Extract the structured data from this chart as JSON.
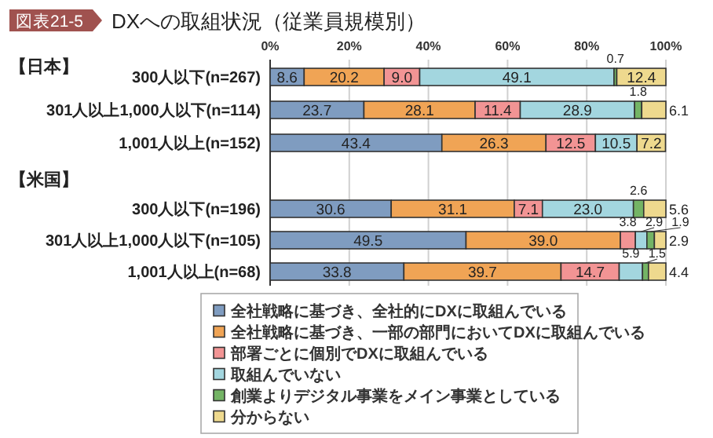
{
  "chart_data": [
    {
      "type": "bar",
      "orientation": "horizontal",
      "stacked": true,
      "title": "DXへの取組状況（従業員規模別）",
      "annotations": [
        "図表21-5"
      ],
      "ylabel": "【日本】",
      "categories": [
        "300人以下(n=267)",
        "301人以上1,000人以下(n=114)",
        "1,001人以上(n=152)"
      ],
      "series": [
        {
          "color": "#7f9cc0",
          "values": [
            8.6,
            23.7,
            43.4
          ],
          "value_labels": [
            "8.6",
            "23.7",
            "43.4"
          ]
        },
        {
          "color": "#f0a455",
          "values": [
            20.2,
            28.1,
            26.3
          ],
          "value_labels": [
            "20.2",
            "28.1",
            "26.3"
          ]
        },
        {
          "color": "#f29494",
          "values": [
            9.0,
            11.4,
            12.5
          ],
          "value_labels": [
            "9.0",
            "11.4",
            "12.5"
          ]
        },
        {
          "color": "#a3d6df",
          "values": [
            49.1,
            28.9,
            10.5
          ],
          "value_labels": [
            "49.1",
            "28.9",
            "10.5"
          ]
        },
        {
          "color": "#74b465",
          "values": [
            0.7,
            1.8,
            null
          ],
          "value_labels": [
            "0.7",
            "1.8",
            null
          ]
        },
        {
          "color": "#eed98e",
          "values": [
            12.4,
            6.1,
            7.2
          ],
          "value_labels": [
            "12.4",
            "6.1",
            "7.2"
          ]
        }
      ],
      "xlim": [
        0,
        100
      ],
      "xticks": [
        {
          "value": 0,
          "label": "0%"
        },
        {
          "value": 20,
          "label": "20%"
        },
        {
          "value": 40,
          "label": "40%"
        },
        {
          "value": 60,
          "label": "60%"
        },
        {
          "value": 80,
          "label": "80%"
        },
        {
          "value": 100,
          "label": "100%"
        }
      ],
      "grid": "x",
      "legend": false
    },
    {
      "type": "bar",
      "orientation": "horizontal",
      "stacked": true,
      "ylabel": "【米国】",
      "categories": [
        "300人以下(n=196)",
        "301人以上1,000人以下(n=105)",
        "1,001人以上(n=68)"
      ],
      "series": [
        {
          "name": "全社戦略に基づき、全社的にDXに取組んでいる",
          "color": "#7f9cc0",
          "values": [
            30.6,
            49.5,
            33.8
          ],
          "value_labels": [
            "30.6",
            "49.5",
            "33.8"
          ]
        },
        {
          "name": "全社戦略に基づき、一部の部門においてDXに取組んでいる",
          "color": "#f0a455",
          "values": [
            31.1,
            39.0,
            39.7
          ],
          "value_labels": [
            "31.1",
            "39.0",
            "39.7"
          ]
        },
        {
          "name": "部署ごとに個別でDXに取組んでいる",
          "color": "#f29494",
          "values": [
            7.1,
            3.8,
            14.7
          ],
          "value_labels": [
            "7.1",
            "3.8",
            "14.7"
          ]
        },
        {
          "name": "取組んでいない",
          "color": "#a3d6df",
          "values": [
            23.0,
            2.9,
            5.9
          ],
          "value_labels": [
            "23.0",
            "2.9",
            "5.9"
          ]
        },
        {
          "name": "創業よりデジタル事業をメイン事業としている",
          "color": "#74b465",
          "values": [
            2.6,
            1.9,
            1.5
          ],
          "value_labels": [
            "2.6",
            "1.9",
            "1.5"
          ]
        },
        {
          "name": "分からない",
          "color": "#eed98e",
          "values": [
            5.6,
            2.9,
            4.4
          ],
          "value_labels": [
            "5.6",
            "2.9",
            "4.4"
          ]
        }
      ],
      "xlim": [
        0,
        100
      ],
      "xticks": [
        {
          "value": 0,
          "label": null
        },
        {
          "value": 20,
          "label": null
        },
        {
          "value": 40,
          "label": null
        },
        {
          "value": 60,
          "label": null
        },
        {
          "value": 80,
          "label": null
        },
        {
          "value": 100,
          "label": null
        }
      ],
      "grid": "x",
      "tick_labels": "y",
      "legend": "bottom"
    }
  ]
}
